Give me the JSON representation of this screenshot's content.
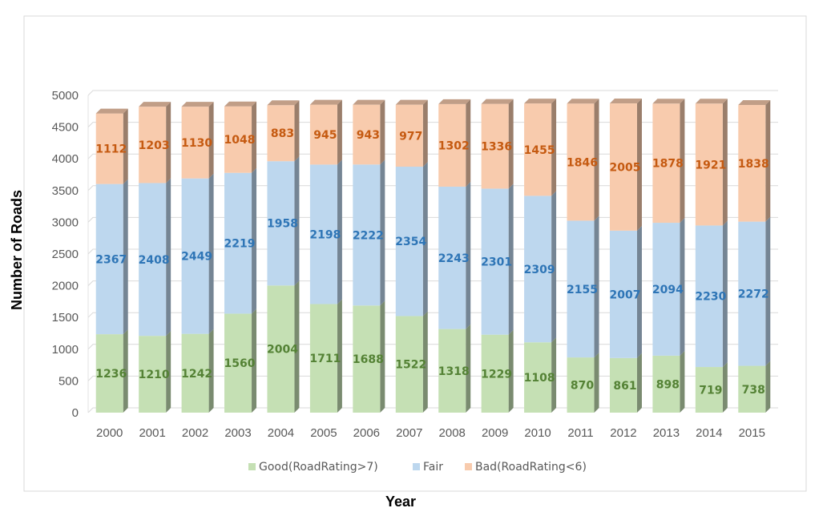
{
  "chart_data": {
    "type": "bar",
    "stacked": true,
    "style": "3d-column",
    "title": "",
    "xlabel": "Year",
    "ylabel": "Number of Roads",
    "ylim": [
      0,
      5000
    ],
    "yticks": [
      0,
      500,
      1000,
      1500,
      2000,
      2500,
      3000,
      3500,
      4000,
      4500,
      5000
    ],
    "grid": true,
    "legend_position": "bottom",
    "categories": [
      "2000",
      "2001",
      "2002",
      "2003",
      "2004",
      "2005",
      "2006",
      "2007",
      "2008",
      "2009",
      "2010",
      "2011",
      "2012",
      "2013",
      "2014",
      "2015"
    ],
    "series": [
      {
        "name": "Good(RoadRating>7)",
        "color": "#c5e0b4",
        "label_color": "#548235",
        "values": [
          1236,
          1210,
          1242,
          1560,
          2004,
          1711,
          1688,
          1522,
          1318,
          1229,
          1108,
          870,
          861,
          898,
          719,
          738
        ]
      },
      {
        "name": "Fair",
        "color": "#bdd7ee",
        "label_color": "#2e75b6",
        "values": [
          2367,
          2408,
          2449,
          2219,
          1958,
          2198,
          2222,
          2354,
          2243,
          2301,
          2309,
          2155,
          2007,
          2094,
          2230,
          2272
        ]
      },
      {
        "name": "Bad(RoadRating<6)",
        "color": "#f8cbad",
        "label_color": "#c55a11",
        "values": [
          1112,
          1203,
          1130,
          1048,
          883,
          945,
          943,
          977,
          1302,
          1336,
          1455,
          1846,
          2005,
          1878,
          1921,
          1838
        ]
      }
    ]
  }
}
